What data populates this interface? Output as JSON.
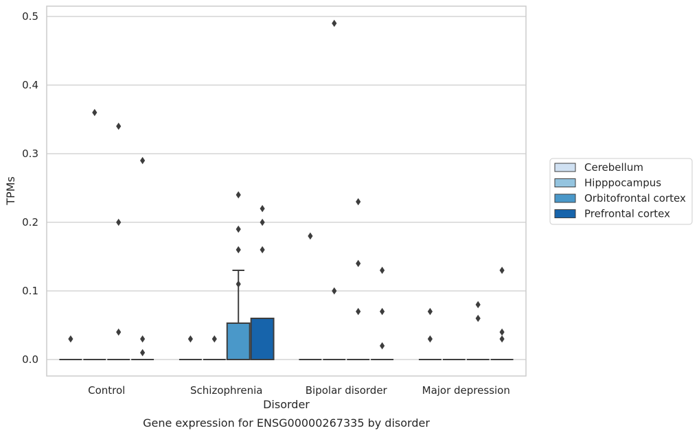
{
  "chart_data": {
    "type": "box",
    "title": "",
    "caption": "Gene expression for ENSG00000267335 by disorder",
    "xlabel": "Disorder",
    "ylabel": "TPMs",
    "ylim": [
      -0.024,
      0.515
    ],
    "yticks": [
      0.0,
      0.1,
      0.2,
      0.3,
      0.4,
      0.5
    ],
    "ytick_labels": [
      "0.0",
      "0.1",
      "0.2",
      "0.3",
      "0.4",
      "0.5"
    ],
    "grid": true,
    "legend_position": "right",
    "categories": [
      "Control",
      "Schizophrenia",
      "Bipolar disorder",
      "Major depression"
    ],
    "series": [
      {
        "name": "Cerebellum",
        "color": "#d0e1f2",
        "boxes": [
          {
            "q1": 0,
            "median": 0,
            "q3": 0,
            "whisker_low": 0,
            "whisker_high": 0,
            "outliers": [
              0.03
            ]
          },
          {
            "q1": 0,
            "median": 0,
            "q3": 0,
            "whisker_low": 0,
            "whisker_high": 0,
            "outliers": [
              0.03
            ]
          },
          {
            "q1": 0,
            "median": 0,
            "q3": 0,
            "whisker_low": 0,
            "whisker_high": 0,
            "outliers": [
              0.18
            ]
          },
          {
            "q1": 0,
            "median": 0,
            "q3": 0,
            "whisker_low": 0,
            "whisker_high": 0,
            "outliers": [
              0.07,
              0.03
            ]
          }
        ]
      },
      {
        "name": "Hipppocampus",
        "color": "#94c4df",
        "boxes": [
          {
            "q1": 0,
            "median": 0,
            "q3": 0,
            "whisker_low": 0,
            "whisker_high": 0,
            "outliers": [
              0.36
            ]
          },
          {
            "q1": 0,
            "median": 0,
            "q3": 0,
            "whisker_low": 0,
            "whisker_high": 0,
            "outliers": [
              0.03
            ]
          },
          {
            "q1": 0,
            "median": 0,
            "q3": 0,
            "whisker_low": 0,
            "whisker_high": 0,
            "outliers": [
              0.49,
              0.1
            ]
          },
          {
            "q1": 0,
            "median": 0,
            "q3": 0,
            "whisker_low": 0,
            "whisker_high": 0,
            "outliers": []
          }
        ]
      },
      {
        "name": "Orbitofrontal cortex",
        "color": "#4a98c9",
        "boxes": [
          {
            "q1": 0,
            "median": 0,
            "q3": 0,
            "whisker_low": 0,
            "whisker_high": 0,
            "outliers": [
              0.34,
              0.2,
              0.04
            ]
          },
          {
            "q1": 0,
            "median": 0,
            "q3": 0.053,
            "whisker_low": 0,
            "whisker_high": 0.13,
            "outliers": [
              0.24,
              0.11
            ]
          },
          {
            "q1": 0,
            "median": 0,
            "q3": 0,
            "whisker_low": 0,
            "whisker_high": 0,
            "outliers": [
              0.23,
              0.14,
              0.07
            ]
          },
          {
            "q1": 0,
            "median": 0,
            "q3": 0,
            "whisker_low": 0,
            "whisker_high": 0,
            "outliers": [
              0.08,
              0.06
            ]
          }
        ]
      },
      {
        "name": "Prefrontal cortex",
        "color": "#1764ab",
        "boxes": [
          {
            "q1": 0,
            "median": 0,
            "q3": 0,
            "whisker_low": 0,
            "whisker_high": 0,
            "outliers": [
              0.29,
              0.03,
              0.01
            ]
          },
          {
            "q1": 0,
            "median": 0,
            "q3": 0.06,
            "whisker_low": 0,
            "whisker_high": 0.06,
            "outliers": [
              0.22,
              0.2,
              0.16
            ]
          },
          {
            "q1": 0,
            "median": 0,
            "q3": 0,
            "whisker_low": 0,
            "whisker_high": 0,
            "outliers": [
              0.13,
              0.07,
              0.02
            ]
          },
          {
            "q1": 0,
            "median": 0,
            "q3": 0,
            "whisker_low": 0,
            "whisker_high": 0,
            "outliers": [
              0.13,
              0.04,
              0.03
            ]
          }
        ]
      }
    ],
    "extra_points": [
      {
        "category": "Schizophrenia",
        "series": "Orbitofrontal cortex",
        "values": [
          0.19,
          0.16
        ]
      }
    ]
  }
}
